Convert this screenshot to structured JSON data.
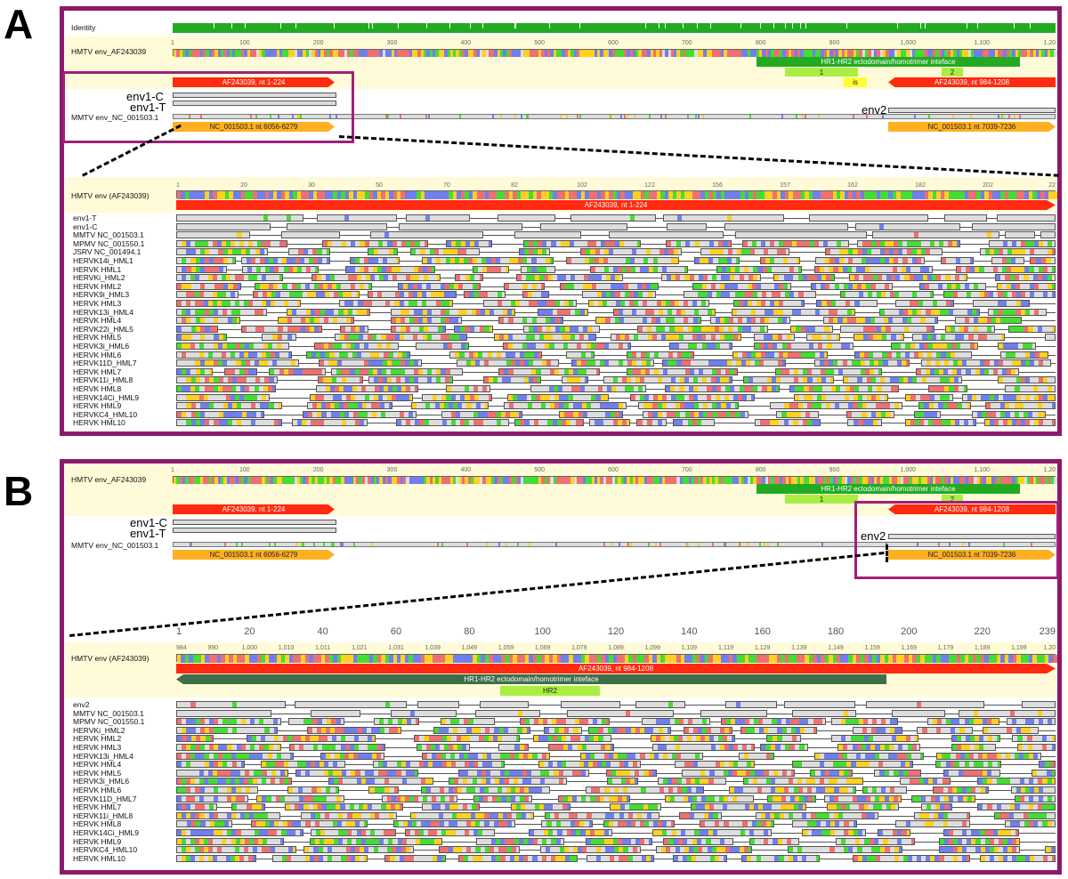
{
  "panels": {
    "a": {
      "letter": "A"
    },
    "b": {
      "letter": "B"
    }
  },
  "top_a": {
    "identity_label": "Identity",
    "hmtv_label": "HMTV env_AF243039",
    "mmtv_label": "MMTV env_NC_001503.1",
    "env1c": "env1-C",
    "env1t": "env1-T",
    "env2": "env2",
    "ticks": [
      "1",
      "100",
      "200",
      "300",
      "400",
      "500",
      "600",
      "700",
      "800",
      "900",
      "1,000",
      "1,100",
      "1,20"
    ],
    "hr_annot": "HR1-HR2 ectodomain/homotrimer inteface",
    "hr1": "1",
    "hr2": "2",
    "is": "is",
    "af_left": "AF243039, nt 1-224",
    "af_right": "AF243039, nt 984-1208",
    "nc_left": "NC_001503.1 nt 6056-6279",
    "nc_right": "NC_001503.1 nt 7039-7236"
  },
  "zoom_a": {
    "hmtv_label": "HMTV env (AF243039)",
    "annot": "AF243039, nt 1-224",
    "ticks": [
      "1",
      "20",
      "30",
      "50",
      "70",
      "82",
      "102",
      "122",
      "156",
      "157",
      "162",
      "182",
      "202",
      "22"
    ],
    "rows": [
      "env1-T",
      "env1-C",
      "MMTV NC_001503.1",
      "MPMV NC_001550.1",
      "JSRV NC_001494.1",
      "HERVK14i_HML1",
      "HERVK HML1",
      "HERVKi_HML2",
      "HERVK HML2",
      "HERVK9i_HML3",
      "HERVK HML3",
      "HERVK13i_HML4",
      "HERVK HML4",
      "HERVK22i_HML5",
      "HERVK HML5",
      "HERVK3i_HML6",
      "HERVK HML6",
      "HERVK11D_HML7",
      "HERVK HML7",
      "HERVK11i_HML8",
      "HERVK HML8",
      "HERVK14Ci_HML9",
      "HERVK HML9",
      "HERVKC4_HML10",
      "HERVK HML10"
    ]
  },
  "top_b": {
    "hmtv_label": "HMTV env_AF243039",
    "mmtv_label": "MMTV env_NC_001503.1",
    "env1c": "env1-C",
    "env1t": "env1-T",
    "env2": "env2",
    "ticks": [
      "1",
      "100",
      "200",
      "300",
      "400",
      "500",
      "600",
      "700",
      "800",
      "900",
      "1,000",
      "1,100",
      "1,20"
    ],
    "hr_annot": "HR1-HR2 ectodomain/homotrimer inteface",
    "hr1": "1",
    "hr2": "2",
    "af_left": "AF243039, nt 1-224",
    "af_right": "AF243039, nt 984-1208",
    "nc_left": "NC_001503.1 nt 6056-6279",
    "nc_right": "NC_001503.1 nt 7039-7236"
  },
  "zoom_b": {
    "hmtv_label": "HMTV env (AF243039)",
    "ruler_ticks": [
      "1",
      "20",
      "40",
      "60",
      "80",
      "100",
      "120",
      "140",
      "160",
      "180",
      "200",
      "220",
      "239"
    ],
    "ticks": [
      "984",
      "990",
      "1,000",
      "1,010",
      "1,011",
      "1,021",
      "1,031",
      "1,039",
      "1,049",
      "1,059",
      "1,069",
      "1,079",
      "1,089",
      "1,099",
      "1,109",
      "1,119",
      "1,129",
      "1,139",
      "1,149",
      "1,159",
      "1,169",
      "1,179",
      "1,189",
      "1,199",
      "1,20"
    ],
    "annot_af": "AF243039, nt 984-1208",
    "annot_hr": "HR1-HR2 ectodomain/homotrimer inteface",
    "annot_hr2": "HR2",
    "rows": [
      "env2",
      "MMTV NC_001503.1",
      "MPMV NC_001550.1",
      "HERVKi_HML2",
      "HERVK HML2",
      "HERVK HML3",
      "HERVK13i_HML4",
      "HERVK HML4",
      "HERVK HML5",
      "HERVK3i_HML6",
      "HERVK HML6",
      "HERVK11D_HML7",
      "HERVK HML7",
      "HERVK11i_HML8",
      "HERVK HML8",
      "HERVK14Ci_HML9",
      "HERVK HML9",
      "HERVKC4_HML10",
      "HERVK HML10"
    ]
  },
  "colors": {
    "frame": "#8b1a6b",
    "identity_green": "#22aa22",
    "annot_red": "#ff2a10",
    "annot_orange": "#ffb020",
    "annot_green": "#22aa22",
    "annot_lightgreen": "#aaee44",
    "annot_yellow": "#ffff33",
    "annot_darkgreen": "#3e6e4a",
    "nuc_a": "#ee7070",
    "nuc_c": "#6f7fee",
    "nuc_g": "#ffd020",
    "nuc_t": "#44dd33",
    "gap": "#dddddd"
  }
}
